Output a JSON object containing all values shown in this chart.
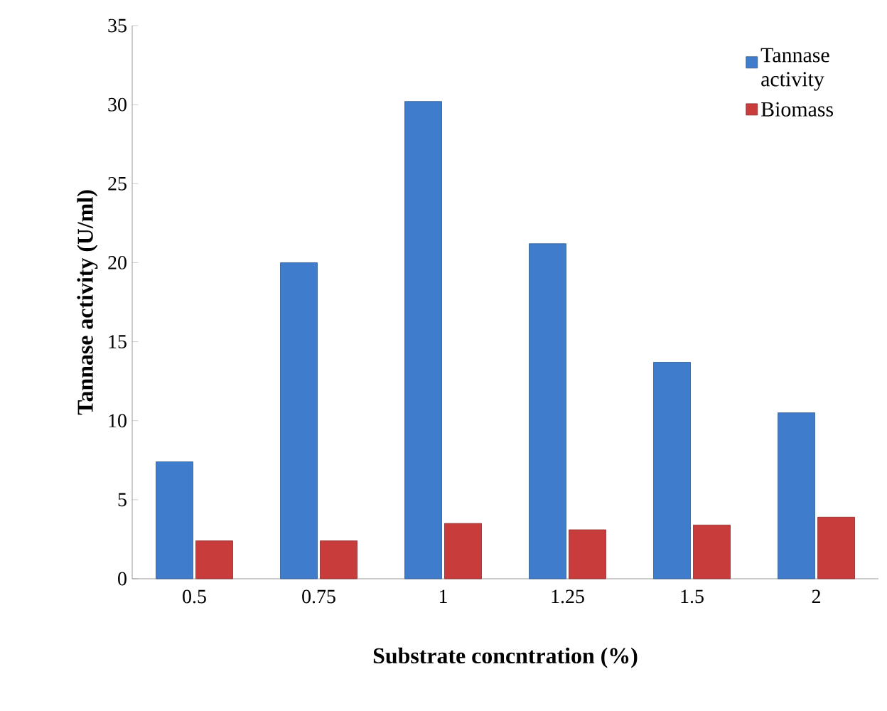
{
  "chart_data": {
    "type": "bar",
    "xlabel": "Substrate concntration (%)",
    "ylabel": "Tannase activity (U/ml)",
    "categories": [
      "0.5",
      "0.75",
      "1",
      "1.25",
      "1.5",
      "2"
    ],
    "series": [
      {
        "name": "Tannase activity",
        "color": "#3f7dcc",
        "values": [
          7.4,
          20,
          30.2,
          21.2,
          13.7,
          10.5
        ]
      },
      {
        "name": "Biomass",
        "color": "#c83c3c",
        "values": [
          2.4,
          2.4,
          3.5,
          3.1,
          3.4,
          3.9
        ]
      }
    ],
    "ylim": [
      0,
      35
    ],
    "yticks": [
      0,
      5,
      10,
      15,
      20,
      25,
      30,
      35
    ],
    "grid": false,
    "legend": "top right"
  }
}
